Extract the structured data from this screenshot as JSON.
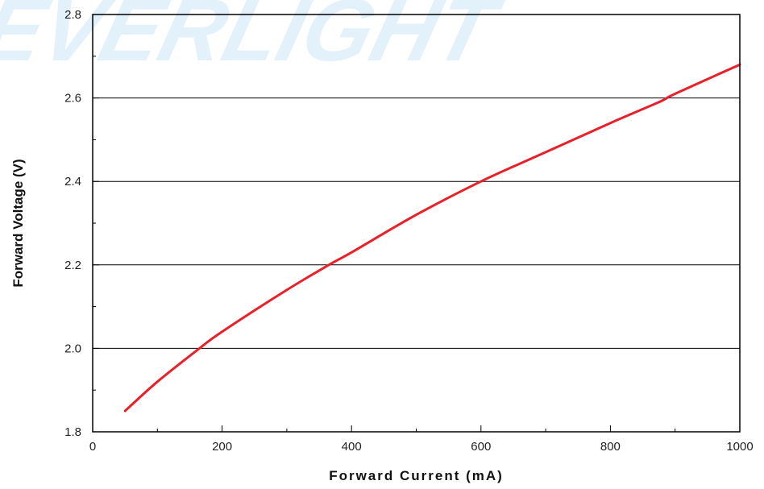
{
  "colors": {
    "series": "#e8202a",
    "gridline": "#000000",
    "frame": "#000000",
    "watermark": "#e3f1fb"
  },
  "watermark": {
    "text": "EVERLIGHT"
  },
  "chart_data": {
    "type": "line",
    "title": "",
    "xlabel": "Forward Current (mA)",
    "ylabel": "Forward Voltage (V)",
    "xlim": [
      0,
      1000
    ],
    "ylim": [
      1.8,
      2.8
    ],
    "xticks": [
      0,
      200,
      400,
      600,
      800,
      1000
    ],
    "xtick_labels": [
      "0",
      "200",
      "400",
      "600",
      "800",
      "1000"
    ],
    "yticks": [
      1.8,
      2.0,
      2.2,
      2.4,
      2.6,
      2.8
    ],
    "ytick_labels": [
      "1.8",
      "2.0",
      "2.2",
      "2.4",
      "2.6",
      "2.8"
    ],
    "grid": "horizontal major",
    "legend": "none",
    "series": [
      {
        "x": [
          50,
          100,
          165,
          200,
          300,
          365,
          400,
          500,
          600,
          700,
          800,
          875,
          900,
          1000
        ],
        "y": [
          1.85,
          1.92,
          2.0,
          2.04,
          2.14,
          2.2,
          2.23,
          2.32,
          2.4,
          2.47,
          2.54,
          2.59,
          2.61,
          2.68
        ]
      }
    ]
  }
}
